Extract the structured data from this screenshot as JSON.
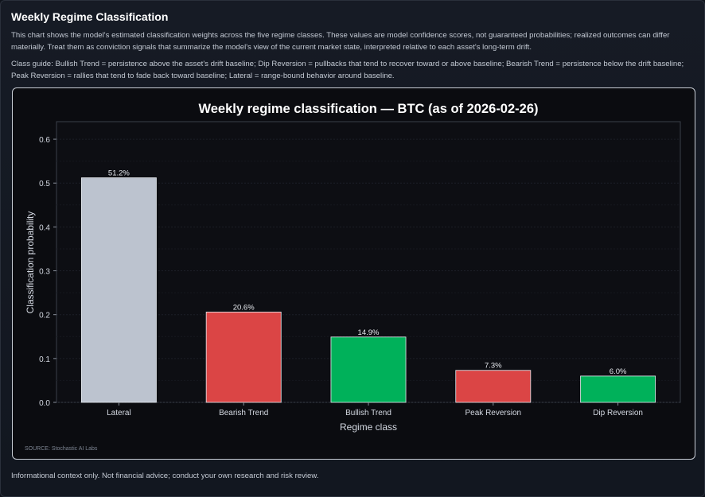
{
  "header": {
    "title": "Weekly Regime Classification",
    "description": "This chart shows the model's estimated classification weights across the five regime classes. These values are model confidence scores, not guaranteed probabilities; realized outcomes can differ materially. Treat them as conviction signals that summarize the model's view of the current market state, interpreted relative to each asset's long-term drift.",
    "guide": "Class guide: Bullish Trend = persistence above the asset's drift baseline; Dip Reversion = pullbacks that tend to recover toward or above baseline; Bearish Trend = persistence below the drift baseline; Peak Reversion = rallies that tend to fade back toward baseline; Lateral = range-bound behavior around baseline."
  },
  "footer": {
    "disclaimer": "Informational context only. Not financial advice; conduct your own research and risk review."
  },
  "chart_data": {
    "type": "bar",
    "title": "Weekly regime classification — BTC (as of 2026-02-26)",
    "xlabel": "Regime class",
    "ylabel": "Classification probability",
    "categories": [
      "Lateral",
      "Bearish Trend",
      "Bullish Trend",
      "Peak Reversion",
      "Dip Reversion"
    ],
    "values": [
      0.512,
      0.206,
      0.149,
      0.073,
      0.06
    ],
    "data_labels": [
      "51.2%",
      "20.6%",
      "14.9%",
      "7.3%",
      "6.0%"
    ],
    "colors": [
      "#bcc3cf",
      "#db4545",
      "#00b15a",
      "#db4545",
      "#00b15a"
    ],
    "ylim": [
      0,
      0.64
    ],
    "yticks": [
      0.0,
      0.1,
      0.2,
      0.3,
      0.4,
      0.5,
      0.6
    ],
    "ytick_labels": [
      "0.0",
      "0.1",
      "0.2",
      "0.3",
      "0.4",
      "0.5",
      "0.6"
    ],
    "grid": true,
    "source": "SOURCE: Stochastic AI Labs"
  }
}
